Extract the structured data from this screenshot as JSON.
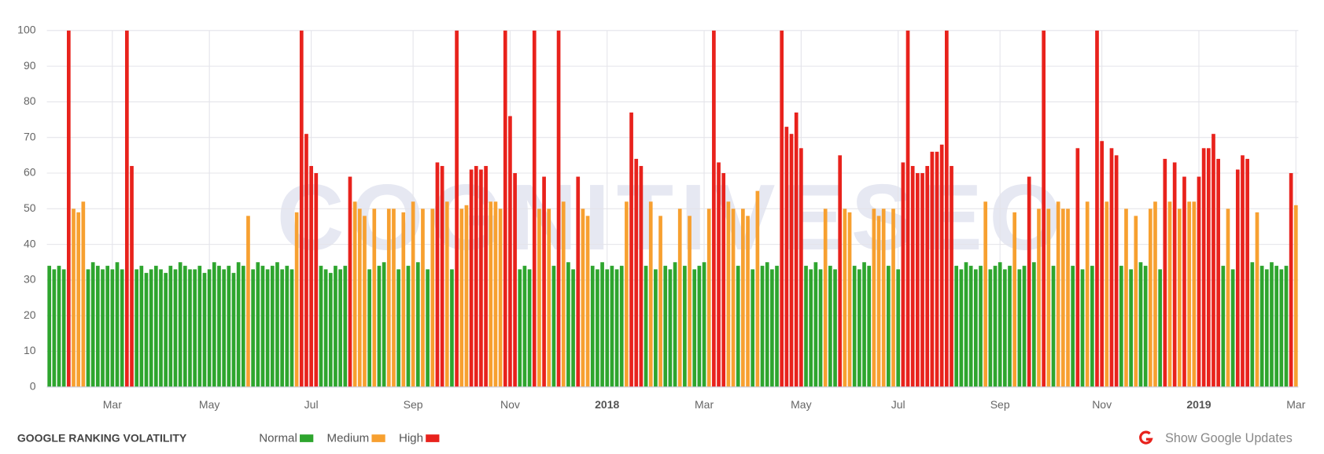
{
  "chart_data": {
    "type": "bar",
    "title": "GOOGLE RANKING VOLATILITY",
    "watermark": "COGNITIVESEO",
    "button": "Show Google Updates",
    "ylim": [
      0,
      100
    ],
    "yticks": [
      0,
      10,
      20,
      30,
      40,
      50,
      60,
      70,
      80,
      90,
      100
    ],
    "grid": true,
    "categories": [
      null,
      null,
      null,
      null,
      null,
      null,
      null,
      null,
      null,
      null,
      null,
      null,
      null,
      "Mar",
      null,
      null,
      null,
      null,
      null,
      null,
      null,
      null,
      null,
      null,
      null,
      null,
      null,
      null,
      null,
      null,
      null,
      null,
      null,
      "May",
      null,
      null,
      null,
      null,
      null,
      null,
      null,
      null,
      null,
      null,
      null,
      null,
      null,
      null,
      null,
      null,
      null,
      null,
      null,
      null,
      "Jul",
      null,
      null,
      null,
      null,
      null,
      null,
      null,
      null,
      null,
      null,
      null,
      null,
      null,
      null,
      null,
      null,
      null,
      null,
      null,
      null,
      "Sep",
      null,
      null,
      null,
      null,
      null,
      null,
      null,
      null,
      null,
      null,
      null,
      null,
      null,
      null,
      null,
      null,
      null,
      null,
      null,
      "Nov",
      null,
      null,
      null,
      null,
      null,
      null,
      null,
      null,
      null,
      null,
      null,
      null,
      null,
      null,
      null,
      null,
      null,
      null,
      null,
      "2018",
      null,
      null,
      null,
      null,
      null,
      null,
      null,
      null,
      null,
      null,
      null,
      null,
      null,
      null,
      null,
      null,
      null,
      null,
      null,
      "Mar",
      null,
      null,
      null,
      null,
      null,
      null,
      null,
      null,
      null,
      null,
      null,
      null,
      null,
      null,
      null,
      null,
      null,
      null,
      null,
      "May",
      null,
      null,
      null,
      null,
      null,
      null,
      null,
      null,
      null,
      null,
      null,
      null,
      null,
      null,
      null,
      null,
      null,
      null,
      null,
      "Jul",
      null,
      null,
      null,
      null,
      null,
      null,
      null,
      null,
      null,
      null,
      null,
      null,
      null,
      null,
      null,
      null,
      null,
      null,
      null,
      null,
      "Sep",
      null,
      null,
      null,
      null,
      null,
      null,
      null,
      null,
      null,
      null,
      null,
      null,
      null,
      null,
      null,
      null,
      null,
      null,
      null,
      null,
      "Nov",
      null,
      null,
      null,
      null,
      null,
      null,
      null,
      null,
      null,
      null,
      null,
      null,
      null,
      null,
      null,
      null,
      null,
      null,
      null,
      "2019",
      null,
      null,
      null,
      null,
      null,
      null,
      null,
      null,
      null,
      null,
      null,
      null,
      null,
      null,
      null,
      null,
      null,
      null,
      null,
      "Mar"
    ],
    "series": [
      {
        "name": "Normal",
        "color": "#2ea52e",
        "values": [
          34,
          33,
          34,
          33,
          null,
          null,
          null,
          null,
          33,
          35,
          34,
          33,
          34,
          33,
          35,
          33,
          null,
          null,
          33,
          34,
          32,
          33,
          34,
          33,
          32,
          34,
          33,
          35,
          34,
          33,
          33,
          34,
          32,
          33,
          35,
          34,
          33,
          34,
          32,
          35,
          34,
          null,
          33,
          35,
          34,
          33,
          34,
          35,
          33,
          34,
          33,
          null,
          null,
          null,
          null,
          null,
          34,
          33,
          32,
          34,
          33,
          34,
          null,
          null,
          null,
          null,
          33,
          null,
          34,
          35,
          null,
          null,
          33,
          null,
          34,
          null,
          35,
          null,
          33,
          null,
          null,
          null,
          null,
          33,
          null,
          null,
          null,
          null,
          null,
          null,
          null,
          null,
          null,
          null,
          null,
          null,
          null,
          33,
          34,
          33,
          null,
          null,
          null,
          null,
          34,
          null,
          null,
          35,
          33,
          null,
          null,
          null,
          34,
          33,
          35,
          33,
          34,
          33,
          34,
          null,
          null,
          null,
          null,
          34,
          null,
          33,
          null,
          34,
          33,
          35,
          null,
          34,
          null,
          33,
          34,
          35,
          null,
          null,
          null,
          null,
          null,
          null,
          34,
          null,
          null,
          33,
          null,
          34,
          35,
          33,
          34,
          null,
          null,
          null,
          null,
          null,
          34,
          33,
          35,
          33,
          null,
          34,
          33,
          null,
          null,
          null,
          34,
          33,
          35,
          34,
          null,
          null,
          null,
          34,
          null,
          33,
          null,
          null,
          null,
          null,
          null,
          null,
          null,
          null,
          null,
          null,
          null,
          34,
          33,
          35,
          34,
          33,
          34,
          null,
          33,
          34,
          35,
          33,
          34,
          null,
          33,
          34,
          null,
          35,
          null,
          null,
          null,
          34,
          null,
          null,
          null,
          34,
          null,
          33,
          null,
          34,
          null,
          null,
          null,
          null,
          null,
          34,
          null,
          33,
          null,
          35,
          34,
          null,
          null,
          33,
          null,
          null,
          null,
          null,
          null,
          null,
          null,
          null,
          null,
          null,
          null,
          null,
          34,
          null,
          33,
          null,
          null,
          null,
          35,
          null,
          34,
          33,
          35,
          34,
          33,
          34,
          null,
          null
        ]
      },
      {
        "name": "Medium",
        "color": "#f7a030",
        "values": [
          null,
          null,
          null,
          null,
          null,
          50,
          49,
          52,
          null,
          null,
          null,
          null,
          null,
          null,
          null,
          null,
          null,
          null,
          null,
          null,
          null,
          null,
          null,
          null,
          null,
          null,
          null,
          null,
          null,
          null,
          null,
          null,
          null,
          null,
          null,
          null,
          null,
          null,
          null,
          null,
          null,
          48,
          null,
          null,
          null,
          null,
          null,
          null,
          null,
          null,
          null,
          49,
          null,
          null,
          null,
          null,
          null,
          null,
          null,
          null,
          null,
          null,
          null,
          52,
          50,
          48,
          null,
          50,
          null,
          null,
          50,
          50,
          null,
          49,
          null,
          52,
          null,
          50,
          null,
          50,
          null,
          null,
          52,
          null,
          null,
          50,
          51,
          null,
          null,
          null,
          null,
          52,
          52,
          50,
          null,
          null,
          null,
          null,
          null,
          null,
          null,
          50,
          null,
          50,
          null,
          null,
          52,
          null,
          null,
          null,
          50,
          48,
          null,
          null,
          null,
          null,
          null,
          null,
          null,
          52,
          null,
          null,
          null,
          null,
          52,
          null,
          48,
          null,
          null,
          null,
          50,
          null,
          48,
          null,
          null,
          null,
          50,
          null,
          null,
          null,
          52,
          50,
          null,
          50,
          48,
          null,
          55,
          null,
          null,
          null,
          null,
          null,
          null,
          null,
          null,
          null,
          null,
          null,
          null,
          null,
          50,
          null,
          null,
          null,
          50,
          49,
          null,
          null,
          null,
          null,
          50,
          48,
          50,
          null,
          50,
          null,
          null,
          null,
          null,
          null,
          null,
          null,
          null,
          null,
          null,
          null,
          null,
          null,
          null,
          null,
          null,
          null,
          null,
          52,
          null,
          null,
          null,
          null,
          null,
          49,
          null,
          null,
          null,
          null,
          50,
          null,
          50,
          null,
          52,
          50,
          50,
          null,
          null,
          null,
          52,
          null,
          null,
          null,
          52,
          null,
          null,
          null,
          50,
          null,
          48,
          null,
          null,
          50,
          52,
          null,
          null,
          52,
          null,
          50,
          null,
          52,
          52,
          null,
          null,
          null,
          null,
          null,
          null,
          50,
          null,
          null,
          null,
          null,
          null,
          49,
          null,
          null,
          null,
          null,
          null,
          null,
          null,
          51
        ]
      },
      {
        "name": "High",
        "color": "#e8221c",
        "values": [
          null,
          null,
          null,
          null,
          100,
          null,
          null,
          null,
          null,
          null,
          null,
          null,
          null,
          null,
          null,
          null,
          100,
          62,
          null,
          null,
          null,
          null,
          null,
          null,
          null,
          null,
          null,
          null,
          null,
          null,
          null,
          null,
          null,
          null,
          null,
          null,
          null,
          null,
          null,
          null,
          null,
          null,
          null,
          null,
          null,
          null,
          null,
          null,
          null,
          null,
          null,
          null,
          100,
          71,
          62,
          60,
          null,
          null,
          null,
          null,
          null,
          null,
          59,
          null,
          null,
          null,
          null,
          null,
          null,
          null,
          null,
          null,
          null,
          null,
          null,
          null,
          null,
          null,
          null,
          null,
          63,
          62,
          null,
          null,
          100,
          null,
          null,
          61,
          62,
          61,
          62,
          null,
          null,
          null,
          100,
          76,
          60,
          null,
          null,
          null,
          100,
          null,
          59,
          null,
          null,
          100,
          null,
          null,
          null,
          59,
          null,
          null,
          null,
          null,
          null,
          null,
          null,
          null,
          null,
          null,
          77,
          64,
          62,
          null,
          null,
          null,
          null,
          null,
          null,
          null,
          null,
          null,
          null,
          null,
          null,
          null,
          null,
          100,
          63,
          60,
          null,
          null,
          null,
          null,
          null,
          null,
          null,
          null,
          null,
          null,
          null,
          100,
          73,
          71,
          77,
          67,
          null,
          null,
          null,
          null,
          null,
          null,
          null,
          65,
          null,
          null,
          null,
          null,
          null,
          null,
          null,
          null,
          null,
          null,
          null,
          null,
          63,
          100,
          62,
          60,
          60,
          62,
          66,
          66,
          68,
          100,
          62,
          null,
          null,
          null,
          null,
          null,
          null,
          null,
          null,
          null,
          null,
          null,
          null,
          null,
          null,
          null,
          59,
          null,
          null,
          100,
          null,
          null,
          null,
          null,
          null,
          null,
          67,
          null,
          null,
          null,
          100,
          69,
          null,
          67,
          65,
          null,
          null,
          null,
          null,
          null,
          null,
          null,
          null,
          null,
          64,
          null,
          63,
          null,
          59,
          null,
          null,
          59,
          67,
          67,
          71,
          64,
          null,
          null,
          null,
          61,
          65,
          64,
          null,
          null,
          null,
          null,
          null,
          null,
          null,
          null,
          60,
          null
        ]
      }
    ]
  }
}
